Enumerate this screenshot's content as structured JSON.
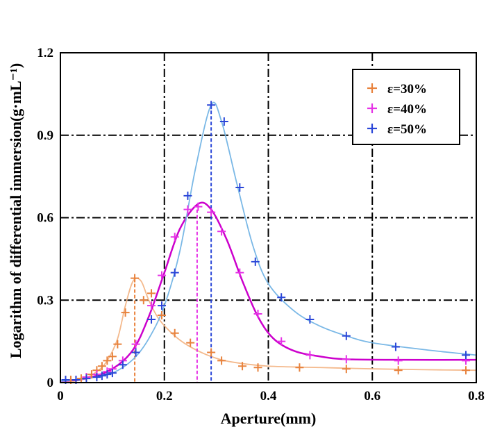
{
  "chart_data": {
    "type": "line",
    "title": "",
    "xlabel": "Aperture(mm)",
    "ylabel": "Logarithm of differential immersion(g·mL⁻¹)",
    "xlim": [
      0,
      0.8
    ],
    "ylim": [
      0,
      1.2
    ],
    "xticks": [
      "0",
      "0.2",
      "0.4",
      "0.6",
      "0.8"
    ],
    "yticks": [
      "0",
      "0.3",
      "0.6",
      "0.9",
      "1.2"
    ],
    "grid": true,
    "legend_position": "top-right",
    "series": [
      {
        "name": "ε=30%",
        "color": "#e8823c",
        "line_color": "#f4b98c",
        "peak": {
          "x": 0.143,
          "y": 0.38
        },
        "points": [
          [
            0.01,
            0.01
          ],
          [
            0.02,
            0.01
          ],
          [
            0.03,
            0.01
          ],
          [
            0.04,
            0.015
          ],
          [
            0.05,
            0.02
          ],
          [
            0.06,
            0.03
          ],
          [
            0.07,
            0.045
          ],
          [
            0.08,
            0.06
          ],
          [
            0.09,
            0.08
          ],
          [
            0.1,
            0.095
          ],
          [
            0.11,
            0.14
          ],
          [
            0.125,
            0.255
          ],
          [
            0.143,
            0.38
          ],
          [
            0.16,
            0.3
          ],
          [
            0.175,
            0.325
          ],
          [
            0.195,
            0.245
          ],
          [
            0.22,
            0.18
          ],
          [
            0.25,
            0.145
          ],
          [
            0.29,
            0.11
          ],
          [
            0.31,
            0.08
          ],
          [
            0.35,
            0.06
          ],
          [
            0.38,
            0.055
          ],
          [
            0.46,
            0.055
          ],
          [
            0.55,
            0.05
          ],
          [
            0.65,
            0.045
          ],
          [
            0.78,
            0.045
          ]
        ],
        "fit": [
          [
            0,
            0
          ],
          [
            0.04,
            0.01
          ],
          [
            0.07,
            0.04
          ],
          [
            0.09,
            0.08
          ],
          [
            0.11,
            0.16
          ],
          [
            0.125,
            0.28
          ],
          [
            0.14,
            0.37
          ],
          [
            0.155,
            0.37
          ],
          [
            0.17,
            0.3
          ],
          [
            0.19,
            0.23
          ],
          [
            0.22,
            0.17
          ],
          [
            0.25,
            0.13
          ],
          [
            0.29,
            0.095
          ],
          [
            0.33,
            0.075
          ],
          [
            0.4,
            0.06
          ],
          [
            0.5,
            0.055
          ],
          [
            0.6,
            0.05
          ],
          [
            0.7,
            0.047
          ],
          [
            0.8,
            0.045
          ]
        ]
      },
      {
        "name": "ε=40%",
        "color": "#e632e6",
        "line_color": "#cc00cc",
        "peak": {
          "x": 0.263,
          "y": 0.65
        },
        "points": [
          [
            0.01,
            0.01
          ],
          [
            0.03,
            0.01
          ],
          [
            0.05,
            0.02
          ],
          [
            0.07,
            0.03
          ],
          [
            0.09,
            0.04
          ],
          [
            0.1,
            0.05
          ],
          [
            0.12,
            0.08
          ],
          [
            0.145,
            0.14
          ],
          [
            0.175,
            0.28
          ],
          [
            0.195,
            0.39
          ],
          [
            0.22,
            0.53
          ],
          [
            0.245,
            0.63
          ],
          [
            0.265,
            0.64
          ],
          [
            0.29,
            0.62
          ],
          [
            0.31,
            0.55
          ],
          [
            0.345,
            0.4
          ],
          [
            0.38,
            0.25
          ],
          [
            0.425,
            0.15
          ],
          [
            0.48,
            0.1
          ],
          [
            0.55,
            0.085
          ],
          [
            0.65,
            0.08
          ],
          [
            0.78,
            0.08
          ]
        ],
        "fit": [
          [
            0,
            0.005
          ],
          [
            0.05,
            0.015
          ],
          [
            0.1,
            0.05
          ],
          [
            0.14,
            0.12
          ],
          [
            0.17,
            0.24
          ],
          [
            0.2,
            0.4
          ],
          [
            0.23,
            0.56
          ],
          [
            0.265,
            0.65
          ],
          [
            0.29,
            0.63
          ],
          [
            0.32,
            0.52
          ],
          [
            0.35,
            0.37
          ],
          [
            0.38,
            0.24
          ],
          [
            0.41,
            0.16
          ],
          [
            0.45,
            0.115
          ],
          [
            0.5,
            0.095
          ],
          [
            0.55,
            0.085
          ],
          [
            0.65,
            0.083
          ],
          [
            0.8,
            0.083
          ]
        ]
      },
      {
        "name": "ε=50%",
        "color": "#2a46d8",
        "line_color": "#7ab8e6",
        "peak": {
          "x": 0.29,
          "y": 1.01
        },
        "points": [
          [
            0.01,
            0.01
          ],
          [
            0.03,
            0.01
          ],
          [
            0.05,
            0.015
          ],
          [
            0.07,
            0.02
          ],
          [
            0.08,
            0.025
          ],
          [
            0.09,
            0.03
          ],
          [
            0.1,
            0.035
          ],
          [
            0.12,
            0.065
          ],
          [
            0.145,
            0.11
          ],
          [
            0.175,
            0.23
          ],
          [
            0.195,
            0.28
          ],
          [
            0.22,
            0.4
          ],
          [
            0.245,
            0.68
          ],
          [
            0.29,
            1.01
          ],
          [
            0.315,
            0.95
          ],
          [
            0.345,
            0.71
          ],
          [
            0.375,
            0.44
          ],
          [
            0.425,
            0.31
          ],
          [
            0.48,
            0.23
          ],
          [
            0.55,
            0.17
          ],
          [
            0.645,
            0.13
          ],
          [
            0.78,
            0.1
          ]
        ],
        "fit": [
          [
            0,
            0.005
          ],
          [
            0.05,
            0.015
          ],
          [
            0.1,
            0.035
          ],
          [
            0.14,
            0.085
          ],
          [
            0.17,
            0.16
          ],
          [
            0.2,
            0.28
          ],
          [
            0.23,
            0.48
          ],
          [
            0.26,
            0.78
          ],
          [
            0.29,
            1.01
          ],
          [
            0.31,
            0.95
          ],
          [
            0.34,
            0.72
          ],
          [
            0.37,
            0.5
          ],
          [
            0.4,
            0.36
          ],
          [
            0.45,
            0.26
          ],
          [
            0.5,
            0.205
          ],
          [
            0.55,
            0.17
          ],
          [
            0.6,
            0.145
          ],
          [
            0.7,
            0.12
          ],
          [
            0.8,
            0.1
          ]
        ]
      }
    ]
  }
}
